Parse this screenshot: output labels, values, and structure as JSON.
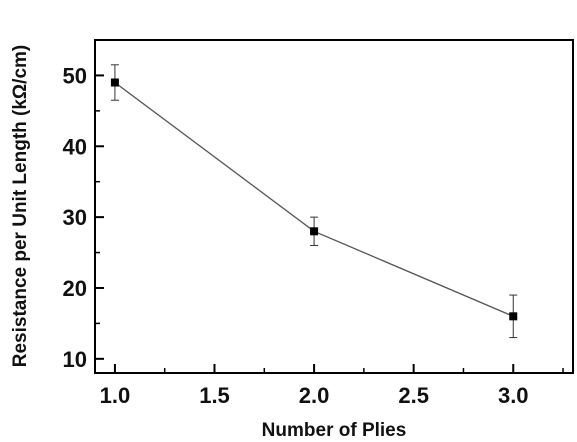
{
  "chart_data": {
    "type": "line",
    "title": "",
    "xlabel": "Number of Plies",
    "ylabel": "Resistance per Unit Length (kΩ/cm)",
    "xlim": [
      0.9,
      3.3
    ],
    "ylim": [
      8,
      55
    ],
    "x_ticks": [
      1.0,
      1.5,
      2.0,
      2.5,
      3.0
    ],
    "x_tick_labels": [
      "1.0",
      "1.5",
      "2.0",
      "2.5",
      "3.0"
    ],
    "y_ticks": [
      10,
      20,
      30,
      40,
      50
    ],
    "y_tick_labels": [
      "10",
      "20",
      "30",
      "40",
      "50"
    ],
    "grid": false,
    "series": [
      {
        "x": [
          1.0,
          2.0,
          3.0
        ],
        "y": [
          49,
          28,
          16
        ],
        "y_err_low": [
          46.5,
          26,
          13
        ],
        "y_err_high": [
          51.5,
          30,
          19
        ],
        "marker": "square",
        "color": "#000000",
        "line_color": "#555555"
      }
    ]
  }
}
